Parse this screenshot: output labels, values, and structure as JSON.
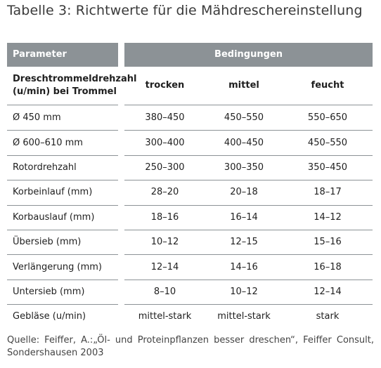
{
  "title": "Tabelle 3: Richtwerte für die Mähdreschereinstellung",
  "header": {
    "parameter": "Parameter",
    "conditions": "Bedingungen"
  },
  "subheader": {
    "label": "Dreschtrommeldrehzahl (u/min) bei Trommel",
    "cols": [
      "trocken",
      "mittel",
      "feucht"
    ]
  },
  "rows": [
    {
      "param": "Ø 450 mm",
      "values": [
        "380–450",
        "450–550",
        "550–650"
      ]
    },
    {
      "param": "Ø 600–610 mm",
      "values": [
        "300–400",
        "400–450",
        "450–550"
      ]
    },
    {
      "param": "Rotordrehzahl",
      "values": [
        "250–300",
        "300–350",
        "350–450"
      ]
    },
    {
      "param": "Korbeinlauf (mm)",
      "values": [
        "28–20",
        "20–18",
        "18–17"
      ]
    },
    {
      "param": "Korbauslauf (mm)",
      "values": [
        "18–16",
        "16–14",
        "14–12"
      ]
    },
    {
      "param": "Übersieb (mm)",
      "values": [
        "10–12",
        "12–15",
        "15–16"
      ]
    },
    {
      "param": "Verlängerung (mm)",
      "values": [
        "12–14",
        "14–16",
        "16–18"
      ]
    },
    {
      "param": "Untersieb (mm)",
      "values": [
        "8–10",
        "10–12",
        "12–14"
      ]
    },
    {
      "param": "Gebläse (u/min)",
      "values": [
        "mittel-stark",
        "mittel-stark",
        "stark"
      ]
    }
  ],
  "source": "Quelle: Feiffer, A.:„Öl- und Proteinpflanzen besser dreschen“, Feiffer Consult, Sondershausen 2003",
  "colors": {
    "header_bg": "#8c9296",
    "header_text": "#ffffff",
    "rule": "#8c9296"
  }
}
